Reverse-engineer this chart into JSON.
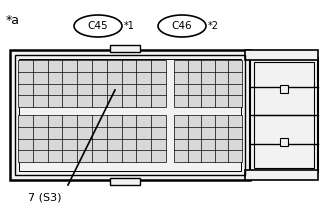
{
  "background_color": "#ffffff",
  "star_a_text": "*a",
  "label_c45": "C45",
  "label_c45_star": "*1",
  "label_c46": "C46",
  "label_c46_star": "*2",
  "connector_label": "7 (S3)",
  "line_color": "#000000",
  "fill_color": "#d8d8d8",
  "text_color": "#000000",
  "figsize": [
    3.3,
    2.12
  ],
  "dpi": 100
}
